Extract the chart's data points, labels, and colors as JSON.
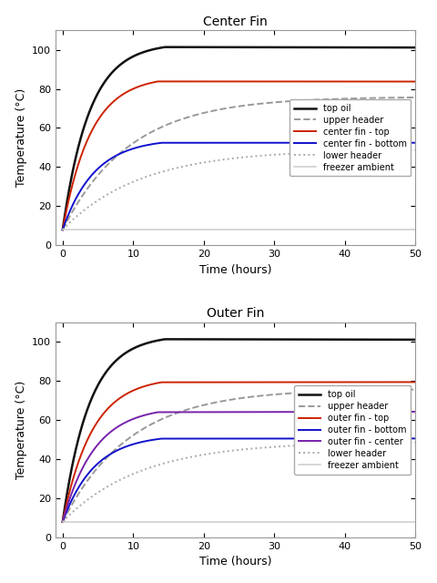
{
  "title1": "Center Fin",
  "title2": "Outer Fin",
  "xlabel": "Time (hours)",
  "ylabel": "Temperature (°C)",
  "xlim": [
    -1,
    50
  ],
  "ylim": [
    0,
    110
  ],
  "xticks": [
    0,
    10,
    20,
    30,
    40,
    50
  ],
  "yticks": [
    0,
    20,
    40,
    60,
    80,
    100
  ],
  "legend1": [
    "top oil",
    "upper header",
    "center fin - top",
    "center fin - bottom",
    "lower header",
    "freezer ambient"
  ],
  "legend2": [
    "top oil",
    "upper header",
    "outer fin - top",
    "outer fin - bottom",
    "outer fin - center",
    "lower header",
    "freezer ambient"
  ],
  "colors1": [
    "#111111",
    "#999999",
    "#cc2200",
    "#1111cc",
    "#aaaaaa",
    "#cccccc"
  ],
  "styles1": [
    "-",
    "--",
    "-",
    "-",
    ":",
    "-"
  ],
  "widths1": [
    1.8,
    1.4,
    1.4,
    1.4,
    1.4,
    1.1
  ],
  "colors2": [
    "#111111",
    "#999999",
    "#cc2200",
    "#1111cc",
    "#7722aa",
    "#aaaaaa",
    "#cccccc"
  ],
  "styles2": [
    "-",
    "--",
    "-",
    "-",
    "-",
    ":",
    "-"
  ],
  "widths2": [
    1.8,
    1.4,
    1.4,
    1.4,
    1.4,
    1.4,
    1.1
  ],
  "bg_color": "#ffffff"
}
